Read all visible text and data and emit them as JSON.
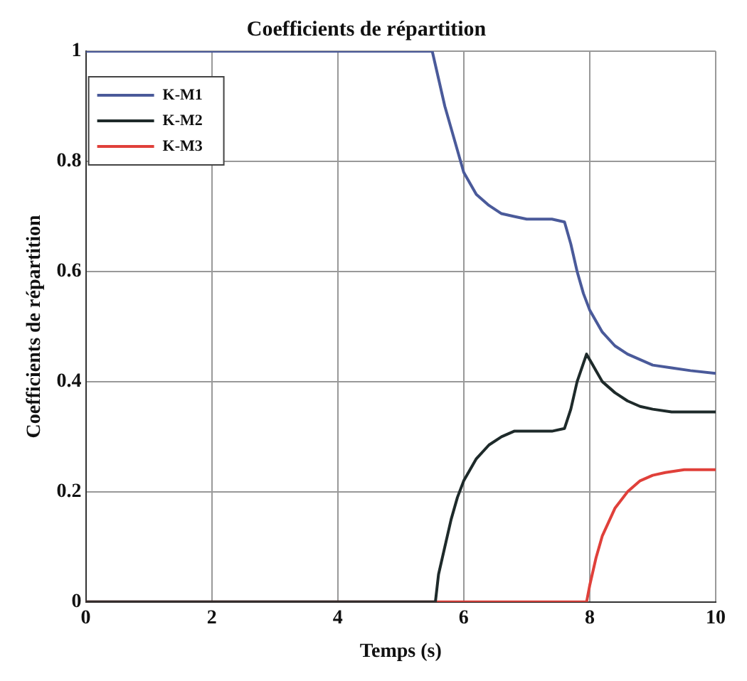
{
  "chart_data": {
    "type": "line",
    "title": "Coefficients de répartition",
    "xlabel": "Temps (s)",
    "ylabel": "Coefficients de répartition",
    "xlim": [
      0,
      10
    ],
    "ylim": [
      0,
      1
    ],
    "xticks": [
      0,
      2,
      4,
      6,
      8,
      10
    ],
    "yticks": [
      0,
      0.2,
      0.4,
      0.6,
      0.8,
      1
    ],
    "grid": true,
    "legend": "top left",
    "marker": "none",
    "line_style": "solid",
    "series": [
      {
        "name": "K-M1",
        "color": "#4a5a9a",
        "x": [
          0,
          5.5,
          5.6,
          5.7,
          5.8,
          5.9,
          6,
          6.1,
          6.2,
          6.4,
          6.6,
          6.8,
          7,
          7.4,
          7.6,
          7.7,
          7.8,
          7.9,
          8,
          8.1,
          8.2,
          8.4,
          8.6,
          8.8,
          9,
          9.3,
          9.6,
          10
        ],
        "values": [
          1,
          1,
          0.95,
          0.9,
          0.86,
          0.82,
          0.78,
          0.76,
          0.74,
          0.72,
          0.705,
          0.7,
          0.695,
          0.695,
          0.69,
          0.65,
          0.6,
          0.56,
          0.53,
          0.51,
          0.49,
          0.465,
          0.45,
          0.44,
          0.43,
          0.425,
          0.42,
          0.415
        ]
      },
      {
        "name": "K-M2",
        "color": "#1e2a2a",
        "x": [
          0,
          5.55,
          5.6,
          5.7,
          5.8,
          5.9,
          6,
          6.2,
          6.4,
          6.6,
          6.8,
          7,
          7.4,
          7.6,
          7.7,
          7.8,
          7.95,
          8,
          8.1,
          8.2,
          8.4,
          8.6,
          8.8,
          9,
          9.3,
          9.6,
          10
        ],
        "values": [
          0,
          0,
          0.05,
          0.1,
          0.15,
          0.19,
          0.22,
          0.26,
          0.285,
          0.3,
          0.31,
          0.31,
          0.31,
          0.315,
          0.35,
          0.4,
          0.45,
          0.44,
          0.42,
          0.4,
          0.38,
          0.365,
          0.355,
          0.35,
          0.345,
          0.345,
          0.345
        ]
      },
      {
        "name": "K-M3",
        "color": "#e0403a",
        "x": [
          0,
          7.95,
          8,
          8.1,
          8.2,
          8.4,
          8.6,
          8.8,
          9,
          9.2,
          9.5,
          10
        ],
        "values": [
          0,
          0,
          0.03,
          0.08,
          0.12,
          0.17,
          0.2,
          0.22,
          0.23,
          0.235,
          0.24,
          0.24
        ]
      }
    ]
  }
}
